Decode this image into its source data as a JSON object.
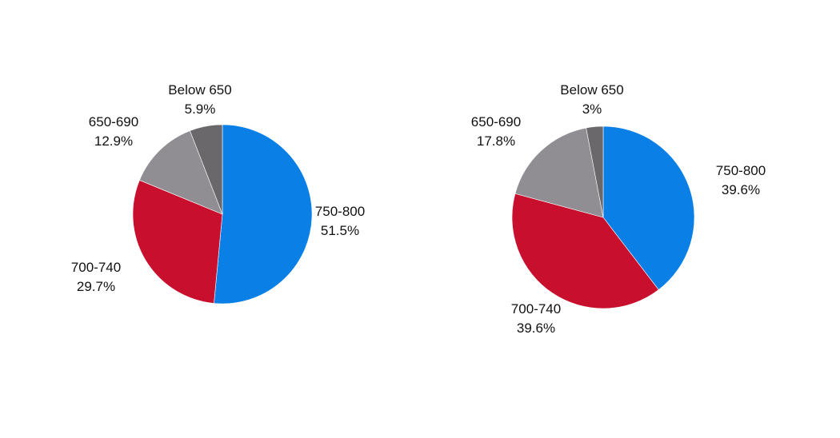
{
  "colors": {
    "750-800": "#0a7fe6",
    "700-740": "#c8102e",
    "650-690": "#918e93",
    "Below 650": "#6b686c",
    "background": "#ffffff",
    "label": "#111111"
  },
  "chart_data": [
    {
      "type": "pie",
      "title": "",
      "categories": [
        "750-800",
        "700-740",
        "650-690",
        "Below 650"
      ],
      "values": [
        51.5,
        29.7,
        12.9,
        5.9
      ],
      "value_labels": [
        "51.5%",
        "29.7%",
        "12.9%",
        "5.9%"
      ],
      "start_angle": "12 o'clock",
      "direction": "clockwise",
      "legend": "none"
    },
    {
      "type": "pie",
      "title": "",
      "categories": [
        "750-800",
        "700-740",
        "650-690",
        "Below 650"
      ],
      "values": [
        39.6,
        39.6,
        17.8,
        3
      ],
      "value_labels": [
        "39.6%",
        "39.6%",
        "17.8%",
        "3%"
      ],
      "start_angle": "12 o'clock",
      "direction": "clockwise",
      "legend": "none"
    }
  ]
}
